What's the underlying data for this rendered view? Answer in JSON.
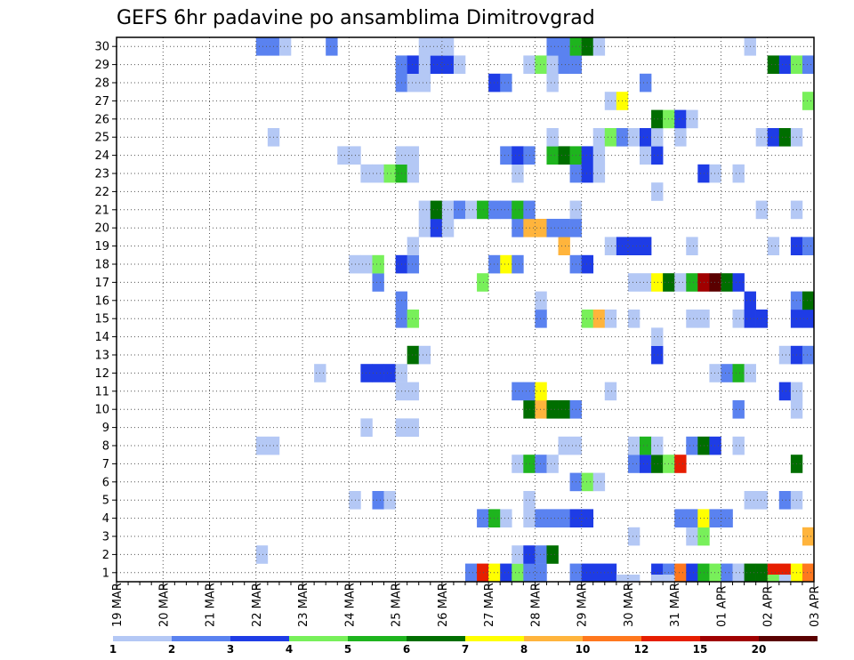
{
  "chart_data": {
    "type": "heatmap",
    "title": "GEFS 6hr padavine po ansamblima Dimitrovgrad",
    "xlabel": "",
    "ylabel": "",
    "x_tick_labels": [
      "19 MAR",
      "20 MAR",
      "21 MAR",
      "22 MAR",
      "23 MAR",
      "24 MAR",
      "25 MAR",
      "26 MAR",
      "27 MAR",
      "28 MAR",
      "29 MAR",
      "30 MAR",
      "31 MAR",
      "01 APR",
      "02 APR",
      "03 APR"
    ],
    "x_range_days": [
      0,
      15
    ],
    "step_hours": 6,
    "members": [
      1,
      2,
      3,
      4,
      5,
      6,
      7,
      8,
      9,
      10,
      11,
      12,
      13,
      14,
      15,
      16,
      17,
      18,
      19,
      20,
      21,
      22,
      23,
      24,
      25,
      26,
      27,
      28,
      29,
      30
    ],
    "y_range": [
      0,
      30
    ],
    "legend": {
      "labels": [
        "1",
        "2",
        "3",
        "4",
        "5",
        "6",
        "7",
        "8",
        "10",
        "12",
        "15",
        "20"
      ],
      "colors": [
        "#b4c8f5",
        "#5a82f0",
        "#1e3ce6",
        "#78f05a",
        "#1eb41e",
        "#006e00",
        "#ffff00",
        "#ffb43c",
        "#ff781e",
        "#e61e00",
        "#a00000",
        "#5a0000"
      ]
    },
    "cells": [
      {
        "m": 1,
        "s": [
          [
            30,
            2
          ],
          [
            31,
            10
          ],
          [
            32,
            7
          ],
          [
            33,
            3
          ],
          [
            34,
            4
          ],
          [
            35,
            2
          ],
          [
            36,
            2
          ],
          [
            39,
            2
          ],
          [
            40,
            3
          ],
          [
            41,
            3
          ],
          [
            42,
            3
          ],
          [
            46,
            3
          ],
          [
            47,
            2
          ],
          [
            48,
            9
          ],
          [
            49,
            3
          ],
          [
            50,
            5
          ],
          [
            51,
            4
          ],
          [
            52,
            2
          ],
          [
            53,
            1
          ],
          [
            54,
            6
          ],
          [
            55,
            6
          ],
          [
            56,
            10
          ],
          [
            57,
            10
          ],
          [
            58,
            7
          ],
          [
            59,
            9
          ]
        ]
      },
      {
        "m": 2,
        "s": [
          [
            12,
            1
          ],
          [
            34,
            1
          ],
          [
            35,
            3
          ],
          [
            36,
            2
          ],
          [
            37,
            6
          ]
        ]
      },
      {
        "m": 3,
        "s": [
          [
            44,
            1
          ],
          [
            49,
            1
          ],
          [
            50,
            4
          ],
          [
            59,
            8
          ]
        ]
      },
      {
        "m": 4,
        "s": [
          [
            31,
            2
          ],
          [
            32,
            5
          ],
          [
            33,
            1
          ],
          [
            35,
            1
          ],
          [
            36,
            2
          ],
          [
            37,
            2
          ],
          [
            38,
            2
          ],
          [
            39,
            3
          ],
          [
            40,
            3
          ],
          [
            48,
            2
          ],
          [
            49,
            2
          ],
          [
            50,
            7
          ],
          [
            51,
            2
          ],
          [
            52,
            2
          ]
        ]
      },
      {
        "m": 5,
        "s": [
          [
            20,
            1
          ],
          [
            22,
            2
          ],
          [
            23,
            1
          ],
          [
            35,
            1
          ],
          [
            54,
            1
          ],
          [
            55,
            1
          ],
          [
            57,
            2
          ],
          [
            58,
            1
          ]
        ]
      },
      {
        "m": 6,
        "s": [
          [
            39,
            2
          ],
          [
            40,
            4
          ],
          [
            41,
            1
          ]
        ]
      },
      {
        "m": 7,
        "s": [
          [
            34,
            1
          ],
          [
            35,
            5
          ],
          [
            36,
            2
          ],
          [
            37,
            1
          ],
          [
            44,
            2
          ],
          [
            45,
            3
          ],
          [
            46,
            6
          ],
          [
            47,
            4
          ],
          [
            48,
            10
          ],
          [
            58,
            6
          ]
        ]
      },
      {
        "m": 8,
        "s": [
          [
            12,
            1
          ],
          [
            13,
            1
          ],
          [
            38,
            1
          ],
          [
            39,
            1
          ],
          [
            44,
            1
          ],
          [
            45,
            5
          ],
          [
            46,
            1
          ],
          [
            49,
            2
          ],
          [
            50,
            6
          ],
          [
            51,
            3
          ],
          [
            53,
            1
          ]
        ]
      },
      {
        "m": 9,
        "s": [
          [
            21,
            1
          ],
          [
            24,
            1
          ],
          [
            25,
            1
          ]
        ]
      },
      {
        "m": 10,
        "s": [
          [
            35,
            6
          ],
          [
            36,
            8
          ],
          [
            37,
            6
          ],
          [
            38,
            6
          ],
          [
            39,
            2
          ],
          [
            53,
            2
          ],
          [
            58,
            1
          ]
        ]
      },
      {
        "m": 11,
        "s": [
          [
            24,
            1
          ],
          [
            25,
            1
          ],
          [
            34,
            2
          ],
          [
            35,
            2
          ],
          [
            36,
            7
          ],
          [
            42,
            1
          ],
          [
            57,
            3
          ],
          [
            58,
            1
          ]
        ]
      },
      {
        "m": 12,
        "s": [
          [
            17,
            1
          ],
          [
            21,
            3
          ],
          [
            22,
            3
          ],
          [
            23,
            3
          ],
          [
            24,
            1
          ],
          [
            51,
            1
          ],
          [
            52,
            2
          ],
          [
            53,
            5
          ],
          [
            54,
            1
          ]
        ]
      },
      {
        "m": 13,
        "s": [
          [
            25,
            6
          ],
          [
            26,
            1
          ],
          [
            46,
            3
          ],
          [
            57,
            1
          ],
          [
            58,
            3
          ],
          [
            59,
            2
          ]
        ]
      },
      {
        "m": 14,
        "s": [
          [
            46,
            1
          ]
        ]
      },
      {
        "m": 15,
        "s": [
          [
            24,
            2
          ],
          [
            25,
            4
          ],
          [
            36,
            2
          ],
          [
            40,
            4
          ],
          [
            41,
            8
          ],
          [
            42,
            1
          ],
          [
            44,
            1
          ],
          [
            49,
            1
          ],
          [
            50,
            1
          ],
          [
            53,
            1
          ],
          [
            54,
            3
          ],
          [
            55,
            3
          ],
          [
            58,
            3
          ],
          [
            59,
            3
          ]
        ]
      },
      {
        "m": 16,
        "s": [
          [
            24,
            2
          ],
          [
            36,
            1
          ],
          [
            54,
            3
          ],
          [
            58,
            2
          ],
          [
            59,
            6
          ]
        ]
      },
      {
        "m": 17,
        "s": [
          [
            22,
            2
          ],
          [
            31,
            4
          ],
          [
            44,
            1
          ],
          [
            45,
            1
          ],
          [
            46,
            7
          ],
          [
            47,
            6
          ],
          [
            48,
            1
          ],
          [
            49,
            5
          ],
          [
            50,
            11
          ],
          [
            51,
            12
          ],
          [
            52,
            6
          ],
          [
            53,
            3
          ]
        ]
      },
      {
        "m": 18,
        "s": [
          [
            20,
            1
          ],
          [
            21,
            1
          ],
          [
            22,
            4
          ],
          [
            24,
            3
          ],
          [
            25,
            2
          ],
          [
            32,
            2
          ],
          [
            33,
            7
          ],
          [
            34,
            2
          ],
          [
            39,
            2
          ],
          [
            40,
            3
          ]
        ]
      },
      {
        "m": 19,
        "s": [
          [
            25,
            1
          ],
          [
            38,
            8
          ],
          [
            42,
            1
          ],
          [
            43,
            3
          ],
          [
            44,
            3
          ],
          [
            45,
            3
          ],
          [
            49,
            1
          ],
          [
            56,
            1
          ],
          [
            58,
            3
          ],
          [
            59,
            2
          ]
        ]
      },
      {
        "m": 20,
        "s": [
          [
            26,
            1
          ],
          [
            27,
            3
          ],
          [
            28,
            1
          ],
          [
            34,
            2
          ],
          [
            35,
            8
          ],
          [
            36,
            8
          ],
          [
            37,
            2
          ],
          [
            38,
            2
          ],
          [
            39,
            2
          ]
        ]
      },
      {
        "m": 21,
        "s": [
          [
            26,
            1
          ],
          [
            27,
            6
          ],
          [
            28,
            1
          ],
          [
            29,
            2
          ],
          [
            30,
            1
          ],
          [
            31,
            5
          ],
          [
            32,
            2
          ],
          [
            33,
            2
          ],
          [
            34,
            5
          ],
          [
            35,
            2
          ],
          [
            39,
            1
          ],
          [
            55,
            1
          ],
          [
            58,
            1
          ]
        ]
      },
      {
        "m": 22,
        "s": [
          [
            46,
            1
          ]
        ]
      },
      {
        "m": 23,
        "s": [
          [
            21,
            1
          ],
          [
            22,
            1
          ],
          [
            23,
            4
          ],
          [
            24,
            5
          ],
          [
            25,
            1
          ],
          [
            34,
            1
          ],
          [
            39,
            2
          ],
          [
            40,
            3
          ],
          [
            41,
            1
          ],
          [
            50,
            3
          ],
          [
            51,
            1
          ],
          [
            53,
            1
          ]
        ]
      },
      {
        "m": 24,
        "s": [
          [
            19,
            1
          ],
          [
            20,
            1
          ],
          [
            24,
            1
          ],
          [
            25,
            1
          ],
          [
            33,
            2
          ],
          [
            34,
            3
          ],
          [
            35,
            2
          ],
          [
            37,
            5
          ],
          [
            38,
            6
          ],
          [
            39,
            5
          ],
          [
            40,
            3
          ],
          [
            41,
            1
          ],
          [
            45,
            1
          ],
          [
            46,
            3
          ]
        ]
      },
      {
        "m": 25,
        "s": [
          [
            13,
            1
          ],
          [
            37,
            1
          ],
          [
            41,
            1
          ],
          [
            42,
            4
          ],
          [
            43,
            2
          ],
          [
            44,
            1
          ],
          [
            45,
            3
          ],
          [
            46,
            1
          ],
          [
            48,
            1
          ],
          [
            55,
            1
          ],
          [
            56,
            3
          ],
          [
            57,
            6
          ],
          [
            58,
            1
          ]
        ]
      },
      {
        "m": 26,
        "s": [
          [
            46,
            6
          ],
          [
            47,
            4
          ],
          [
            48,
            3
          ],
          [
            49,
            1
          ]
        ]
      },
      {
        "m": 27,
        "s": [
          [
            42,
            1
          ],
          [
            43,
            7
          ],
          [
            59,
            4
          ]
        ]
      },
      {
        "m": 28,
        "s": [
          [
            24,
            2
          ],
          [
            25,
            1
          ],
          [
            26,
            1
          ],
          [
            32,
            3
          ],
          [
            33,
            2
          ],
          [
            37,
            1
          ],
          [
            45,
            2
          ]
        ]
      },
      {
        "m": 29,
        "s": [
          [
            24,
            2
          ],
          [
            25,
            3
          ],
          [
            26,
            1
          ],
          [
            27,
            3
          ],
          [
            28,
            3
          ],
          [
            29,
            1
          ],
          [
            35,
            1
          ],
          [
            36,
            4
          ],
          [
            37,
            1
          ],
          [
            38,
            2
          ],
          [
            39,
            2
          ],
          [
            56,
            6
          ],
          [
            57,
            3
          ],
          [
            58,
            4
          ],
          [
            59,
            2
          ]
        ]
      },
      {
        "m": 30,
        "s": [
          [
            12,
            2
          ],
          [
            13,
            2
          ],
          [
            14,
            1
          ],
          [
            18,
            2
          ],
          [
            26,
            1
          ],
          [
            27,
            1
          ],
          [
            28,
            1
          ],
          [
            37,
            2
          ],
          [
            38,
            2
          ],
          [
            39,
            5
          ],
          [
            40,
            6
          ],
          [
            41,
            1
          ],
          [
            54,
            1
          ]
        ]
      }
    ],
    "row0": [
      [
        43,
        1
      ],
      [
        44,
        1
      ],
      [
        46,
        1
      ],
      [
        47,
        1
      ],
      [
        56,
        4
      ],
      [
        57,
        1
      ]
    ]
  }
}
